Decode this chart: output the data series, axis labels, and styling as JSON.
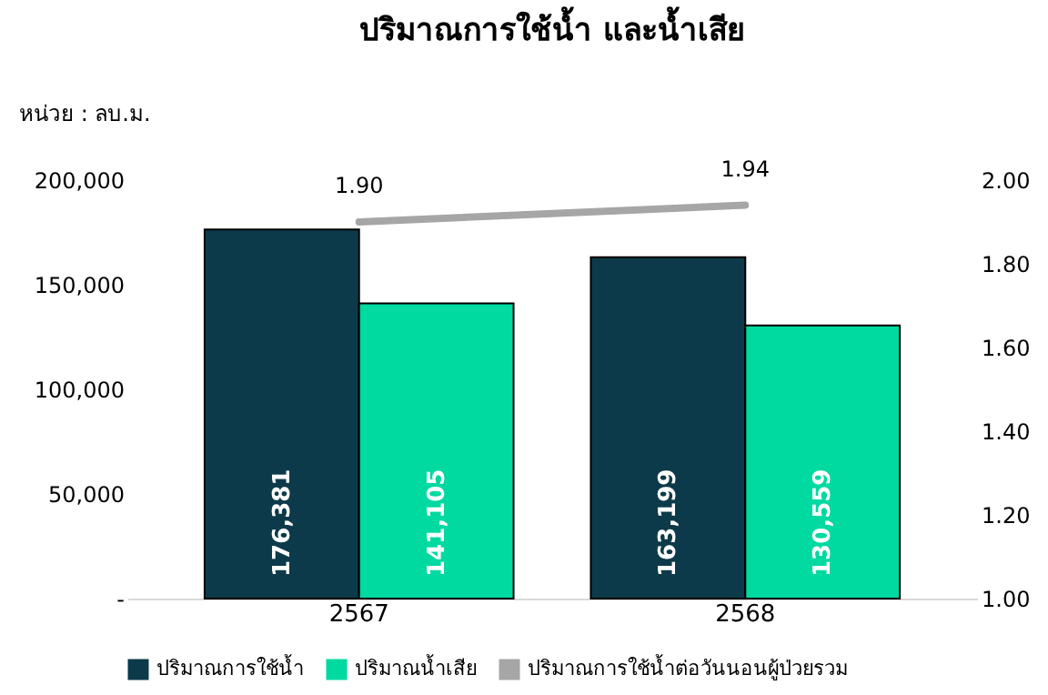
{
  "chart_data": {
    "type": "bar",
    "title": "ปริมาณการใช้น้ำ และน้ำเสีย",
    "ylabel": "หน่วย : ลบ.ม.",
    "categories": [
      "2567",
      "2568"
    ],
    "series": [
      {
        "name": "ปริมาณการใช้น้ำ",
        "color": "#0d3a4a",
        "values": [
          176381,
          163199
        ],
        "value_labels": [
          "176,381",
          "163,199"
        ]
      },
      {
        "name": "ปริมาณน้ำเสีย",
        "color": "#00d9a0",
        "values": [
          141105,
          130559
        ],
        "value_labels": [
          "141,105",
          "130,559"
        ]
      },
      {
        "name": "ปริมาณการใช้น้ำต่อวันนอนผู้ป่วยรวม",
        "type": "line",
        "axis": "y2",
        "color": "#a6a6a6",
        "values": [
          1.9,
          1.94
        ],
        "value_labels": [
          "1.90",
          "1.94"
        ]
      }
    ],
    "ylim": [
      0,
      200000
    ],
    "yticks": [
      {
        "value": 0,
        "label": "-"
      },
      {
        "value": 50000,
        "label": "50,000"
      },
      {
        "value": 100000,
        "label": "100,000"
      },
      {
        "value": 150000,
        "label": "150,000"
      },
      {
        "value": 200000,
        "label": "200,000"
      }
    ],
    "y2lim": [
      1.0,
      2.0
    ],
    "y2ticks": [
      {
        "value": 1.0,
        "label": "1.00"
      },
      {
        "value": 1.2,
        "label": "1.20"
      },
      {
        "value": 1.4,
        "label": "1.40"
      },
      {
        "value": 1.6,
        "label": "1.60"
      },
      {
        "value": 1.8,
        "label": "1.80"
      },
      {
        "value": 2.0,
        "label": "2.00"
      }
    ],
    "grid": false,
    "legend": "bottom"
  }
}
